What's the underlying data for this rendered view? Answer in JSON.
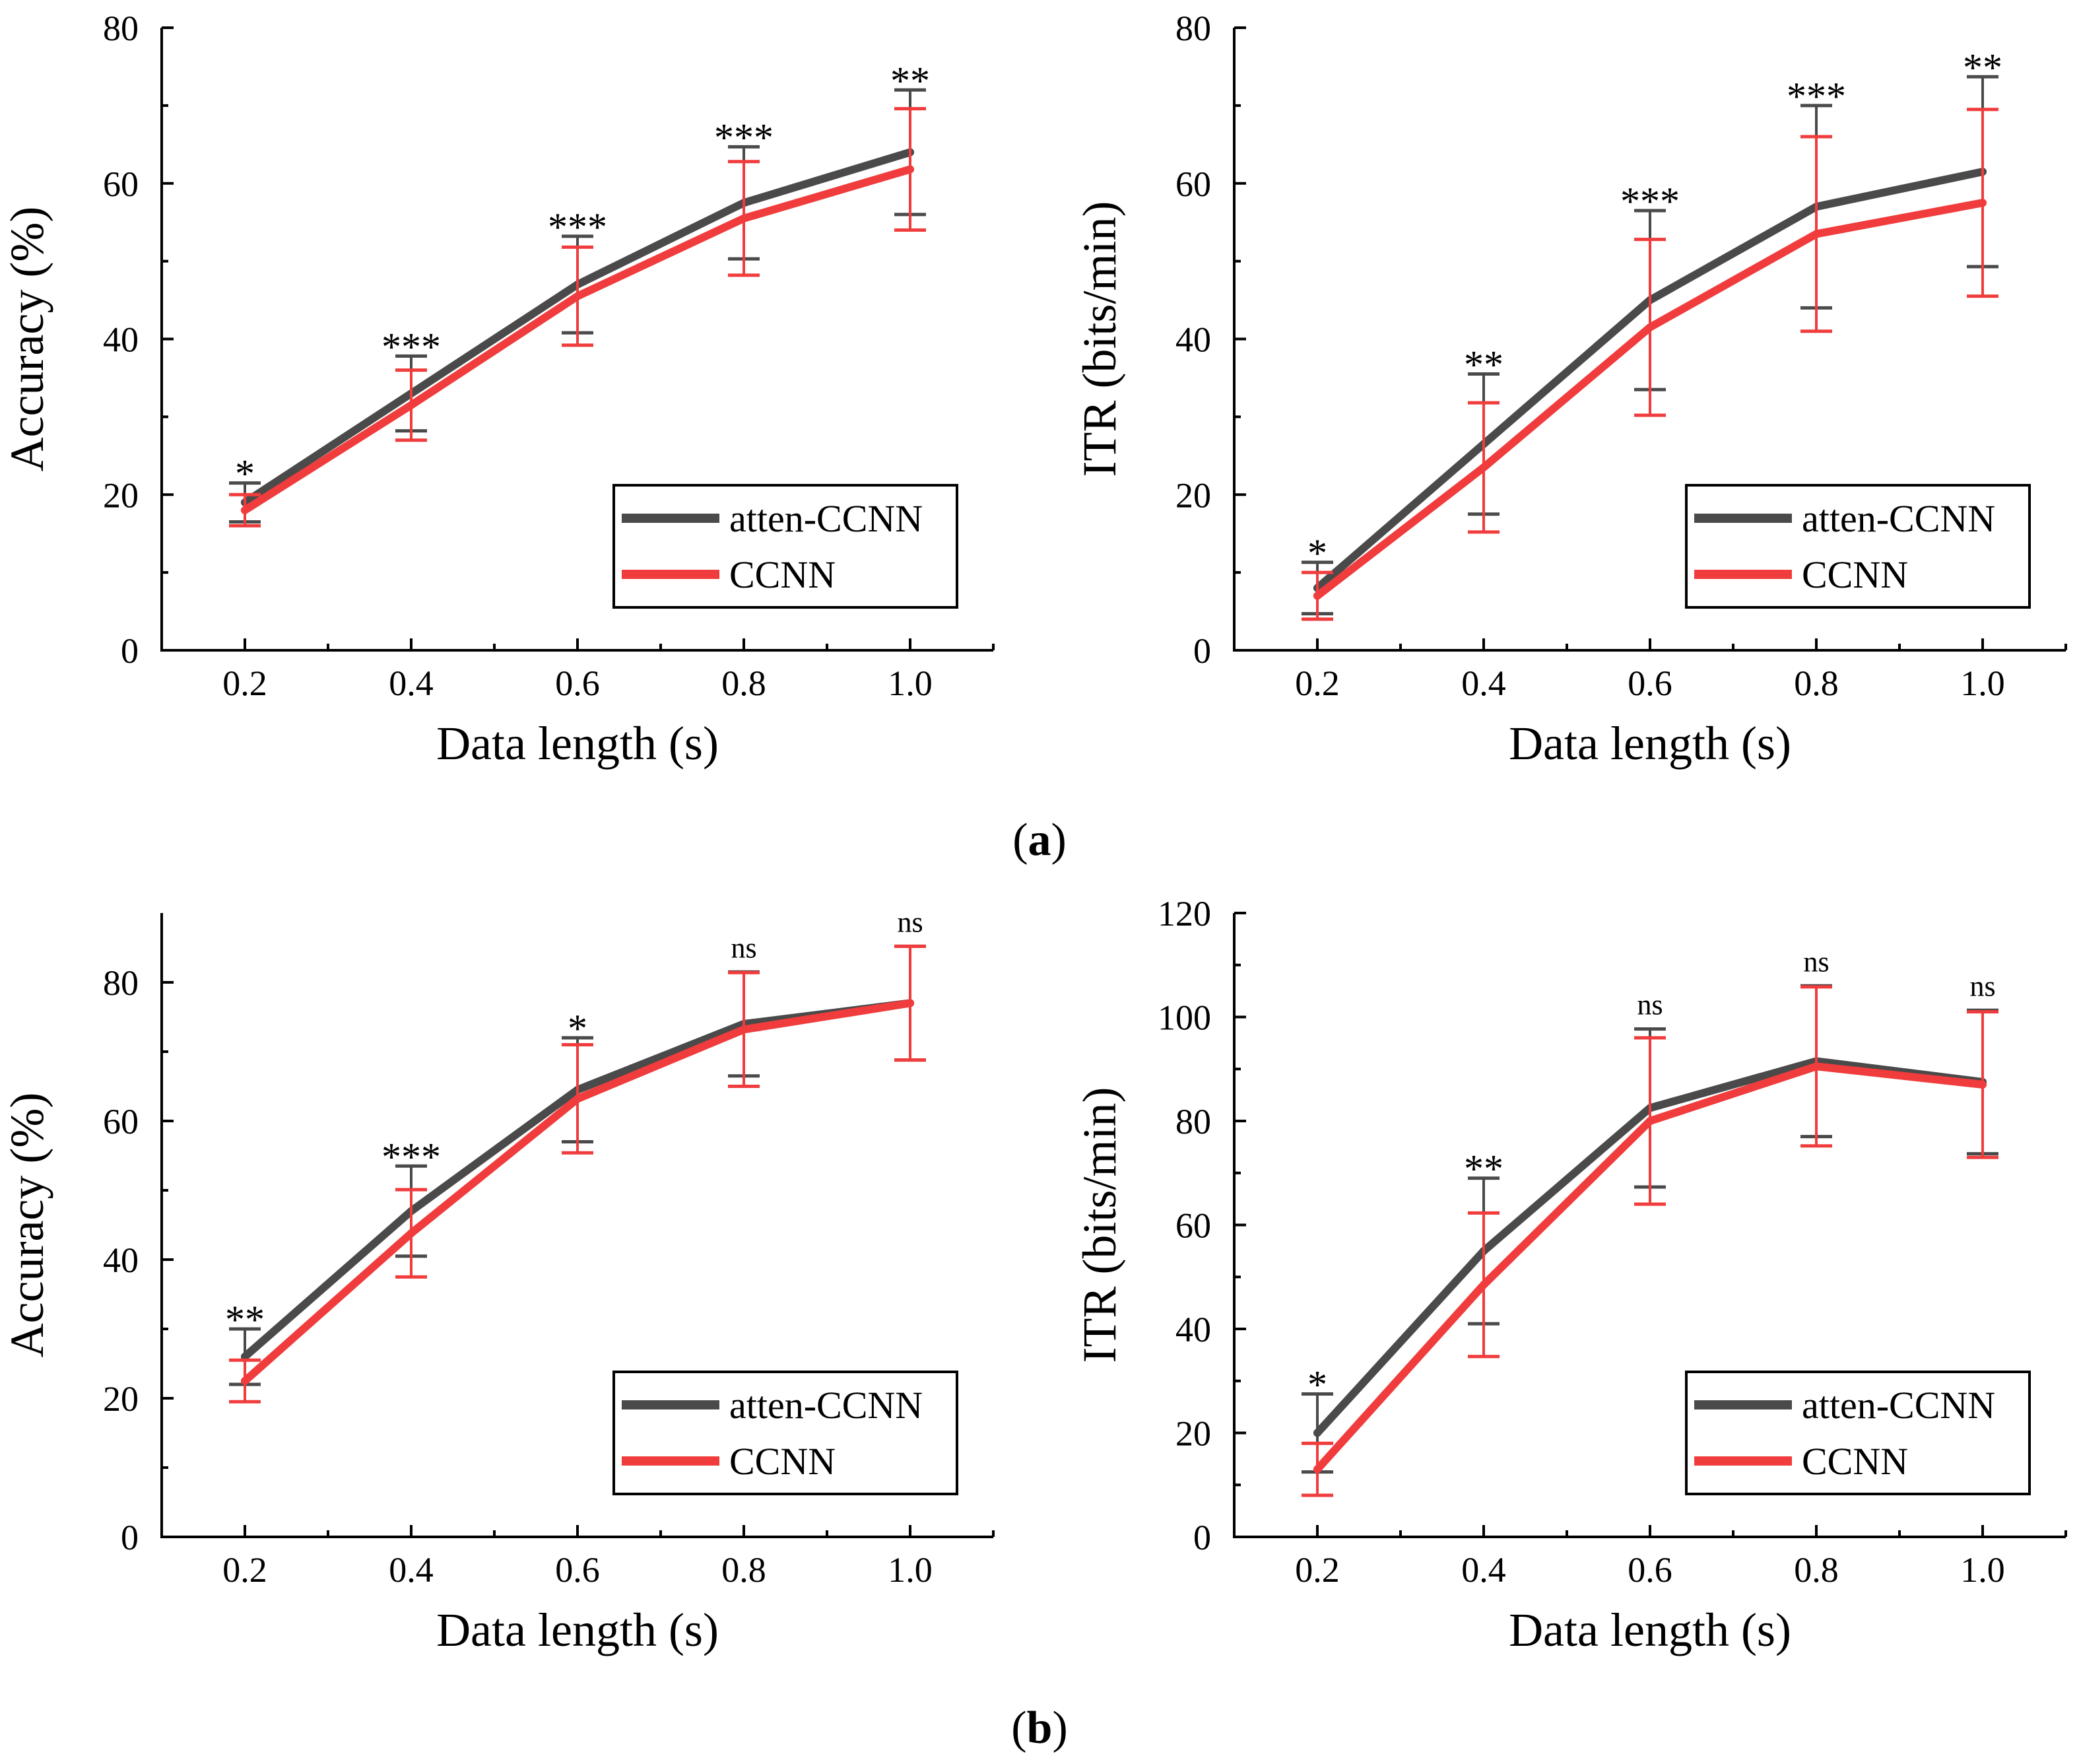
{
  "figure": {
    "caption_a": "a",
    "caption_b": "b"
  },
  "colors": {
    "atten": "#4a4a4a",
    "ccnn": "#f03c3c",
    "axis": "#000000"
  },
  "chart_data": [
    {
      "id": "a-acc",
      "type": "line",
      "xlabel": "Data length (s)",
      "ylabel": "Accuracy (%)",
      "x": [
        0.2,
        0.4,
        0.6,
        0.8,
        1.0
      ],
      "xtick_labels": [
        "0.2",
        "0.4",
        "0.6",
        "0.8",
        "1.0"
      ],
      "xlim": [
        0.1,
        1.1
      ],
      "ylim": [
        0,
        80
      ],
      "yticks": [
        0,
        20,
        40,
        60,
        80
      ],
      "legend": "bottom-right",
      "series": [
        {
          "name": "atten-CCNN",
          "values": [
            19,
            33,
            47,
            57.5,
            64
          ],
          "err": [
            2.5,
            4.8,
            6.2,
            7.2,
            8
          ]
        },
        {
          "name": "CCNN",
          "values": [
            18,
            31.5,
            45.5,
            55.5,
            61.8
          ],
          "err": [
            2,
            4.5,
            6.3,
            7.3,
            7.8
          ]
        }
      ],
      "significance": [
        "*",
        "***",
        "***",
        "***",
        "**"
      ]
    },
    {
      "id": "a-itr",
      "type": "line",
      "xlabel": "Data length (s)",
      "ylabel": "ITR (bits/min)",
      "x": [
        0.2,
        0.4,
        0.6,
        0.8,
        1.0
      ],
      "xtick_labels": [
        "0.2",
        "0.4",
        "0.6",
        "0.8",
        "1.0"
      ],
      "xlim": [
        0.1,
        1.1
      ],
      "ylim": [
        0,
        80
      ],
      "yticks": [
        0,
        20,
        40,
        60,
        80
      ],
      "legend": "bottom-right",
      "series": [
        {
          "name": "atten-CCNN",
          "values": [
            8,
            26.5,
            45,
            57,
            61.5
          ],
          "err": [
            3.3,
            9,
            11.5,
            13,
            12.2
          ]
        },
        {
          "name": "CCNN",
          "values": [
            7,
            23.5,
            41.5,
            53.5,
            57.5
          ],
          "err": [
            3,
            8.3,
            11.3,
            12.5,
            12
          ]
        }
      ],
      "significance": [
        "*",
        "**",
        "***",
        "***",
        "**"
      ]
    },
    {
      "id": "b-acc",
      "type": "line",
      "xlabel": "Data length (s)",
      "ylabel": "Accuracy (%)",
      "x": [
        0.2,
        0.4,
        0.6,
        0.8,
        1.0
      ],
      "xtick_labels": [
        "0.2",
        "0.4",
        "0.6",
        "0.8",
        "1.0"
      ],
      "xlim": [
        0.1,
        1.1
      ],
      "ylim": [
        0,
        90
      ],
      "yticks": [
        0,
        20,
        40,
        60,
        80
      ],
      "legend": "bottom-right",
      "series": [
        {
          "name": "atten-CCNN",
          "values": [
            26,
            47,
            64.5,
            74,
            77
          ],
          "err": [
            4,
            6.5,
            7.5,
            7.5,
            8.2
          ]
        },
        {
          "name": "CCNN",
          "values": [
            22.5,
            43.8,
            63.2,
            73.2,
            77
          ],
          "err": [
            3,
            6.3,
            7.8,
            8.2,
            8.2
          ]
        }
      ],
      "significance": [
        "**",
        "***",
        "*",
        "ns",
        "ns"
      ]
    },
    {
      "id": "b-itr",
      "type": "line",
      "xlabel": "Data length (s)",
      "ylabel": "ITR (bits/min)",
      "x": [
        0.2,
        0.4,
        0.6,
        0.8,
        1.0
      ],
      "xtick_labels": [
        "0.2",
        "0.4",
        "0.6",
        "0.8",
        "1.0"
      ],
      "xlim": [
        0.1,
        1.1
      ],
      "ylim": [
        0,
        120
      ],
      "yticks": [
        0,
        20,
        40,
        60,
        80,
        100,
        120
      ],
      "legend": "bottom-right",
      "series": [
        {
          "name": "atten-CCNN",
          "values": [
            20,
            55,
            82.5,
            91.5,
            87.5
          ],
          "err": [
            7.5,
            14,
            15.2,
            14.5,
            13.8
          ]
        },
        {
          "name": "CCNN",
          "values": [
            13,
            48.5,
            80,
            90.5,
            87
          ],
          "err": [
            5,
            13.8,
            16,
            15.3,
            14
          ]
        }
      ],
      "significance": [
        "*",
        "**",
        "ns",
        "ns",
        "ns"
      ]
    }
  ]
}
